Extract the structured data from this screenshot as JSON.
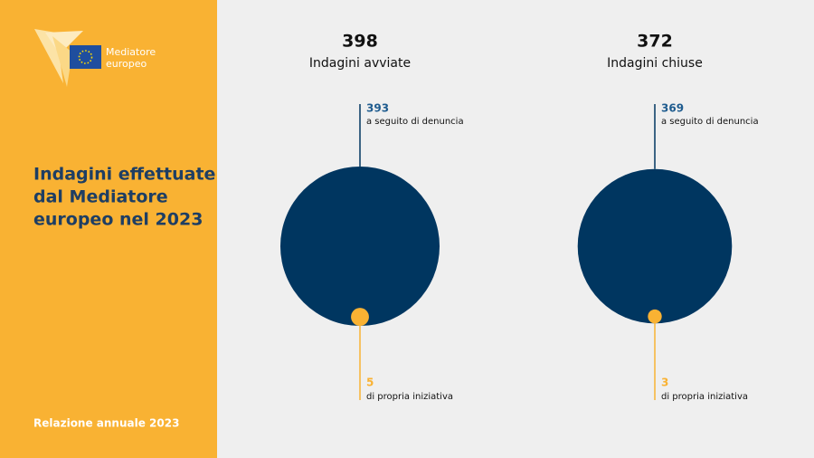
{
  "logo": {
    "lines": [
      "Mediatore",
      "europeo"
    ]
  },
  "sidebar": {
    "title": [
      "Indagini effettuate",
      "dal Mediatore",
      "europeo nel 2023"
    ],
    "footer": "Relazione annuale 2023"
  },
  "panels": [
    {
      "total": 398,
      "label": "Indagini avviate",
      "parts": [
        {
          "value": 393,
          "label": "a seguito di denuncia",
          "color": "#003660"
        },
        {
          "value": 5,
          "label": "di propria iniziativa",
          "color": "#F9B233"
        }
      ]
    },
    {
      "total": 372,
      "label": "Indagini chiuse",
      "parts": [
        {
          "value": 369,
          "label": "a seguito di denuncia",
          "color": "#003660"
        },
        {
          "value": 3,
          "label": "di propria iniziativa",
          "color": "#F9B233"
        }
      ]
    }
  ]
}
